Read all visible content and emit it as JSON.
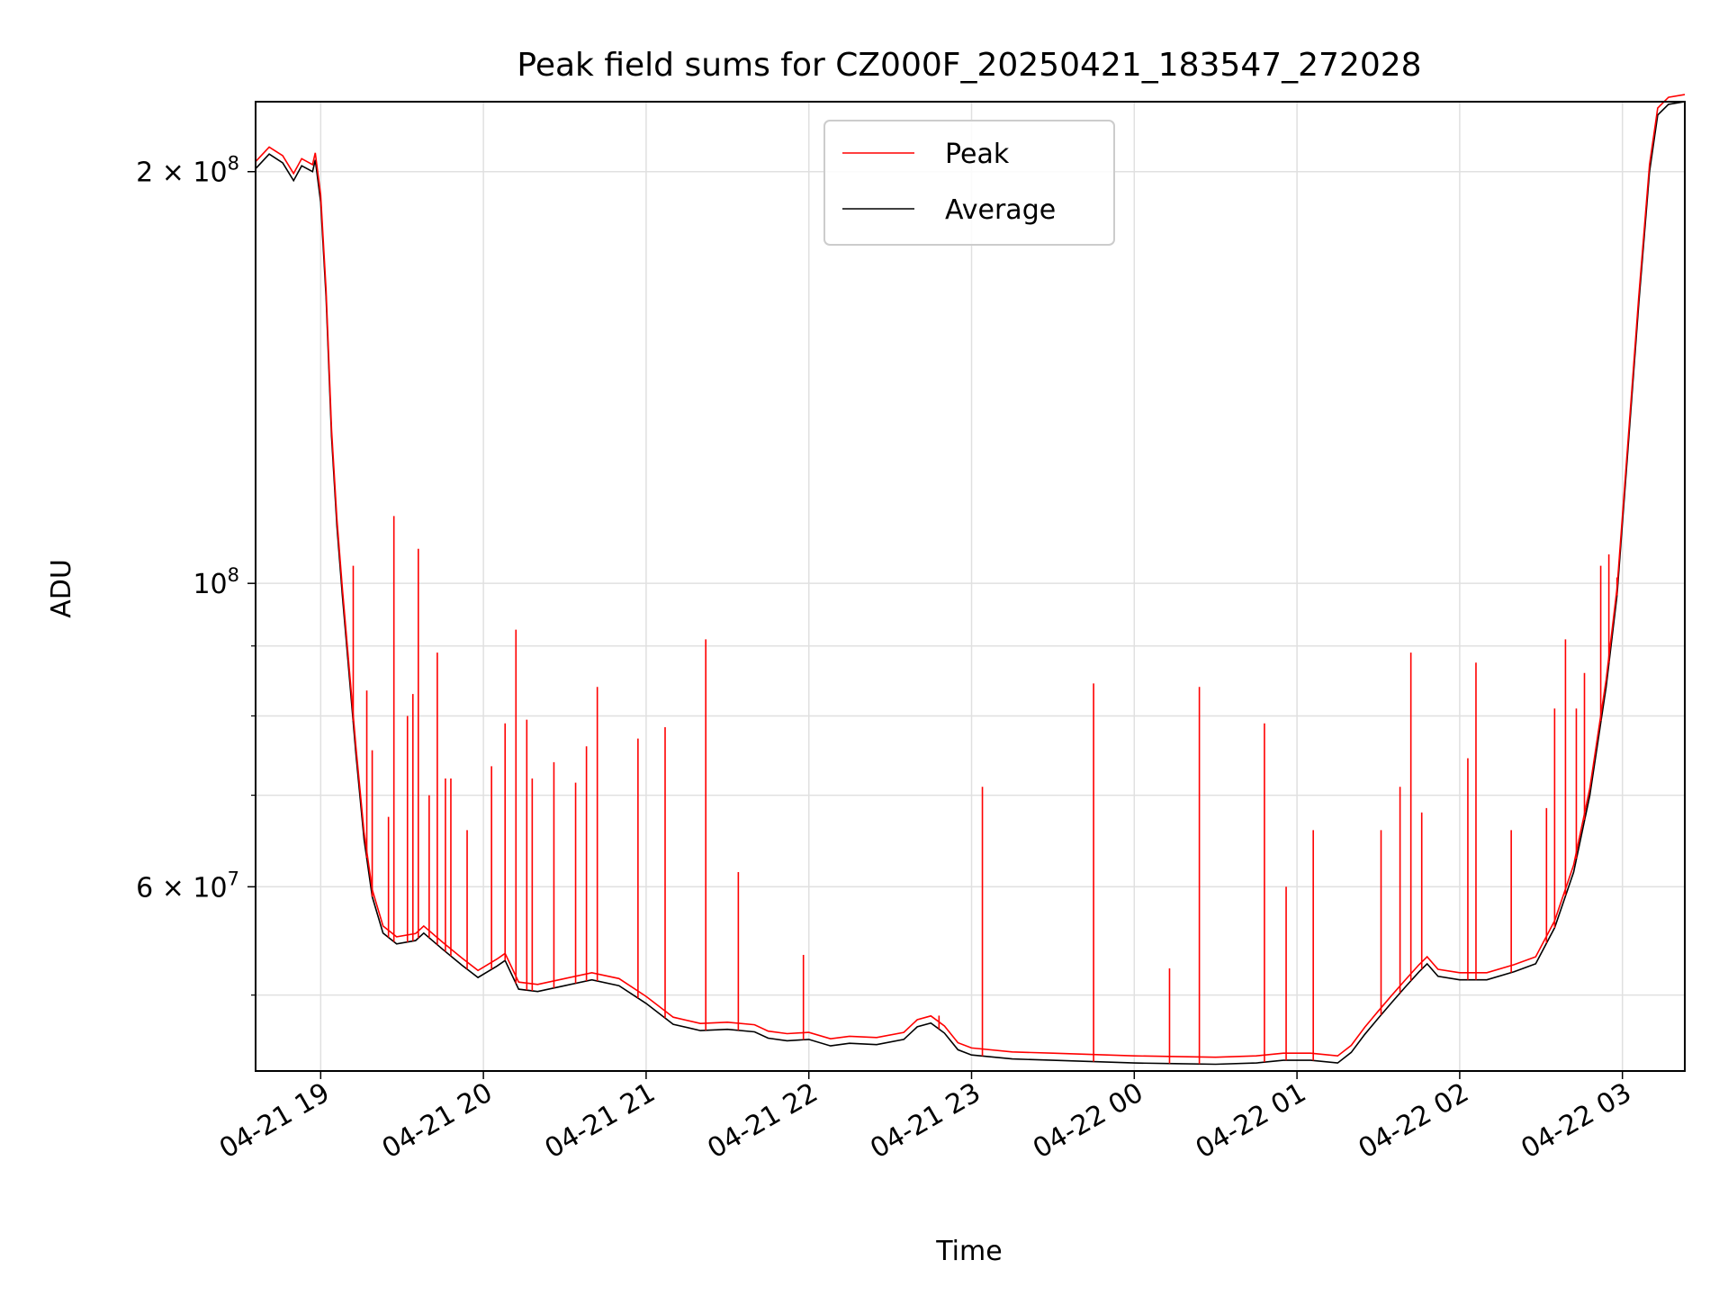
{
  "chart_data": {
    "type": "line",
    "title": "Peak field sums for CZ000F_20250421_183547_272028",
    "xlabel": "Time",
    "ylabel": "ADU",
    "yscale": "log",
    "grid": true,
    "legend_position": "upper center",
    "xlim": [
      "2025-04-21 18:36",
      "2025-04-22 03:23"
    ],
    "ylim": [
      44000000,
      225000000
    ],
    "x_ticks": [
      {
        "value": "2025-04-21 19:00",
        "label": "04-21 19"
      },
      {
        "value": "2025-04-21 20:00",
        "label": "04-21 20"
      },
      {
        "value": "2025-04-21 21:00",
        "label": "04-21 21"
      },
      {
        "value": "2025-04-21 22:00",
        "label": "04-21 22"
      },
      {
        "value": "2025-04-21 23:00",
        "label": "04-21 23"
      },
      {
        "value": "2025-04-22 00:00",
        "label": "04-22 00"
      },
      {
        "value": "2025-04-22 01:00",
        "label": "04-22 01"
      },
      {
        "value": "2025-04-22 02:00",
        "label": "04-22 02"
      },
      {
        "value": "2025-04-22 03:00",
        "label": "04-22 03"
      }
    ],
    "y_major_ticks": [
      {
        "value": 60000000,
        "mant": "6 × 10",
        "exp": "7"
      },
      {
        "value": 100000000,
        "mant": "10",
        "exp": "8"
      },
      {
        "value": 200000000,
        "mant": "2 × 10",
        "exp": "8"
      }
    ],
    "y_minor_ticks": [
      50000000,
      70000000,
      80000000,
      90000000
    ],
    "series": [
      {
        "name": "Average",
        "color": "#000000",
        "points": [
          [
            "2025-04-21 18:36",
            201000000
          ],
          [
            "2025-04-21 18:41",
            206000000
          ],
          [
            "2025-04-21 18:46",
            203000000
          ],
          [
            "2025-04-21 18:50",
            197000000
          ],
          [
            "2025-04-21 18:53",
            202000000
          ],
          [
            "2025-04-21 18:57",
            200000000
          ],
          [
            "2025-04-21 18:58",
            204000000
          ],
          [
            "2025-04-21 19:00",
            190000000
          ],
          [
            "2025-04-21 19:02",
            162000000
          ],
          [
            "2025-04-21 19:04",
            128000000
          ],
          [
            "2025-04-21 19:06",
            110000000
          ],
          [
            "2025-04-21 19:08",
            98000000
          ],
          [
            "2025-04-21 19:10",
            88000000
          ],
          [
            "2025-04-21 19:13",
            75000000
          ],
          [
            "2025-04-21 19:16",
            65000000
          ],
          [
            "2025-04-21 19:19",
            59000000
          ],
          [
            "2025-04-21 19:23",
            55500000
          ],
          [
            "2025-04-21 19:28",
            54500000
          ],
          [
            "2025-04-21 19:35",
            54800000
          ],
          [
            "2025-04-21 19:38",
            55500000
          ],
          [
            "2025-04-21 19:45",
            54000000
          ],
          [
            "2025-04-21 19:52",
            52600000
          ],
          [
            "2025-04-21 19:58",
            51500000
          ],
          [
            "2025-04-21 20:05",
            52500000
          ],
          [
            "2025-04-21 20:08",
            53000000
          ],
          [
            "2025-04-21 20:13",
            50500000
          ],
          [
            "2025-04-21 20:20",
            50300000
          ],
          [
            "2025-04-21 20:30",
            50800000
          ],
          [
            "2025-04-21 20:40",
            51300000
          ],
          [
            "2025-04-21 20:50",
            50800000
          ],
          [
            "2025-04-21 21:00",
            49300000
          ],
          [
            "2025-04-21 21:10",
            47600000
          ],
          [
            "2025-04-21 21:20",
            47100000
          ],
          [
            "2025-04-21 21:30",
            47200000
          ],
          [
            "2025-04-21 21:40",
            47000000
          ],
          [
            "2025-04-21 21:45",
            46500000
          ],
          [
            "2025-04-21 21:52",
            46300000
          ],
          [
            "2025-04-21 22:00",
            46400000
          ],
          [
            "2025-04-21 22:08",
            45900000
          ],
          [
            "2025-04-21 22:15",
            46100000
          ],
          [
            "2025-04-21 22:25",
            46000000
          ],
          [
            "2025-04-21 22:35",
            46400000
          ],
          [
            "2025-04-21 22:40",
            47400000
          ],
          [
            "2025-04-21 22:45",
            47700000
          ],
          [
            "2025-04-21 22:50",
            46900000
          ],
          [
            "2025-04-21 22:55",
            45600000
          ],
          [
            "2025-04-21 23:00",
            45200000
          ],
          [
            "2025-04-21 23:15",
            44900000
          ],
          [
            "2025-04-21 23:30",
            44800000
          ],
          [
            "2025-04-21 23:45",
            44700000
          ],
          [
            "2025-04-22 00:00",
            44600000
          ],
          [
            "2025-04-22 00:15",
            44550000
          ],
          [
            "2025-04-22 00:30",
            44500000
          ],
          [
            "2025-04-22 00:45",
            44600000
          ],
          [
            "2025-04-22 00:55",
            44800000
          ],
          [
            "2025-04-22 01:05",
            44800000
          ],
          [
            "2025-04-22 01:15",
            44600000
          ],
          [
            "2025-04-22 01:20",
            45400000
          ],
          [
            "2025-04-22 01:25",
            46800000
          ],
          [
            "2025-04-22 01:30",
            48100000
          ],
          [
            "2025-04-22 01:35",
            49400000
          ],
          [
            "2025-04-22 01:40",
            50700000
          ],
          [
            "2025-04-22 01:45",
            52000000
          ],
          [
            "2025-04-22 01:48",
            52700000
          ],
          [
            "2025-04-22 01:52",
            51600000
          ],
          [
            "2025-04-22 02:00",
            51300000
          ],
          [
            "2025-04-22 02:10",
            51300000
          ],
          [
            "2025-04-22 02:20",
            52000000
          ],
          [
            "2025-04-22 02:28",
            52700000
          ],
          [
            "2025-04-22 02:35",
            56000000
          ],
          [
            "2025-04-22 02:42",
            61500000
          ],
          [
            "2025-04-22 02:48",
            70000000
          ],
          [
            "2025-04-22 02:54",
            84000000
          ],
          [
            "2025-04-22 02:58",
            98000000
          ],
          [
            "2025-04-22 03:02",
            125000000
          ],
          [
            "2025-04-22 03:06",
            160000000
          ],
          [
            "2025-04-22 03:10",
            200000000
          ],
          [
            "2025-04-22 03:13",
            220000000
          ],
          [
            "2025-04-22 03:17",
            224000000
          ],
          [
            "2025-04-22 03:23",
            225000000
          ]
        ]
      },
      {
        "name": "Peak",
        "color": "#ff0000",
        "spikes": [
          [
            "2025-04-21 19:12",
            103000000
          ],
          [
            "2025-04-21 19:17",
            83500000
          ],
          [
            "2025-04-21 19:19",
            75500000
          ],
          [
            "2025-04-21 19:25",
            67500000
          ],
          [
            "2025-04-21 19:27",
            112000000
          ],
          [
            "2025-04-21 19:32",
            80000000
          ],
          [
            "2025-04-21 19:34",
            83000000
          ],
          [
            "2025-04-21 19:36",
            106000000
          ],
          [
            "2025-04-21 19:40",
            70000000
          ],
          [
            "2025-04-21 19:43",
            89000000
          ],
          [
            "2025-04-21 19:46",
            72000000
          ],
          [
            "2025-04-21 19:48",
            72000000
          ],
          [
            "2025-04-21 19:54",
            66000000
          ],
          [
            "2025-04-21 20:03",
            73500000
          ],
          [
            "2025-04-21 20:08",
            79000000
          ],
          [
            "2025-04-21 20:12",
            92500000
          ],
          [
            "2025-04-21 20:16",
            79500000
          ],
          [
            "2025-04-21 20:18",
            72000000
          ],
          [
            "2025-04-21 20:26",
            74000000
          ],
          [
            "2025-04-21 20:34",
            71500000
          ],
          [
            "2025-04-21 20:38",
            76000000
          ],
          [
            "2025-04-21 20:42",
            84000000
          ],
          [
            "2025-04-21 20:57",
            77000000
          ],
          [
            "2025-04-21 21:07",
            78500000
          ],
          [
            "2025-04-21 21:22",
            91000000
          ],
          [
            "2025-04-21 21:34",
            61500000
          ],
          [
            "2025-04-21 21:58",
            53500000
          ],
          [
            "2025-04-21 22:48",
            48300000
          ],
          [
            "2025-04-21 23:04",
            71000000
          ],
          [
            "2025-04-21 23:45",
            84500000
          ],
          [
            "2025-04-22 00:13",
            52300000
          ],
          [
            "2025-04-22 00:24",
            84000000
          ],
          [
            "2025-04-22 00:48",
            79000000
          ],
          [
            "2025-04-22 00:56",
            60000000
          ],
          [
            "2025-04-22 01:06",
            66000000
          ],
          [
            "2025-04-22 01:31",
            66000000
          ],
          [
            "2025-04-22 01:38",
            71000000
          ],
          [
            "2025-04-22 01:42",
            89000000
          ],
          [
            "2025-04-22 01:46",
            68000000
          ],
          [
            "2025-04-22 02:06",
            87500000
          ],
          [
            "2025-04-22 02:03",
            74500000
          ],
          [
            "2025-04-22 02:19",
            66000000
          ],
          [
            "2025-04-22 02:32",
            68500000
          ],
          [
            "2025-04-22 02:35",
            81000000
          ],
          [
            "2025-04-22 02:39",
            91000000
          ],
          [
            "2025-04-22 02:43",
            81000000
          ],
          [
            "2025-04-22 02:46",
            86000000
          ],
          [
            "2025-04-22 02:52",
            103000000
          ],
          [
            "2025-04-22 02:55",
            105000000
          ],
          [
            "2025-04-22 02:58",
            101000000
          ]
        ]
      }
    ]
  }
}
